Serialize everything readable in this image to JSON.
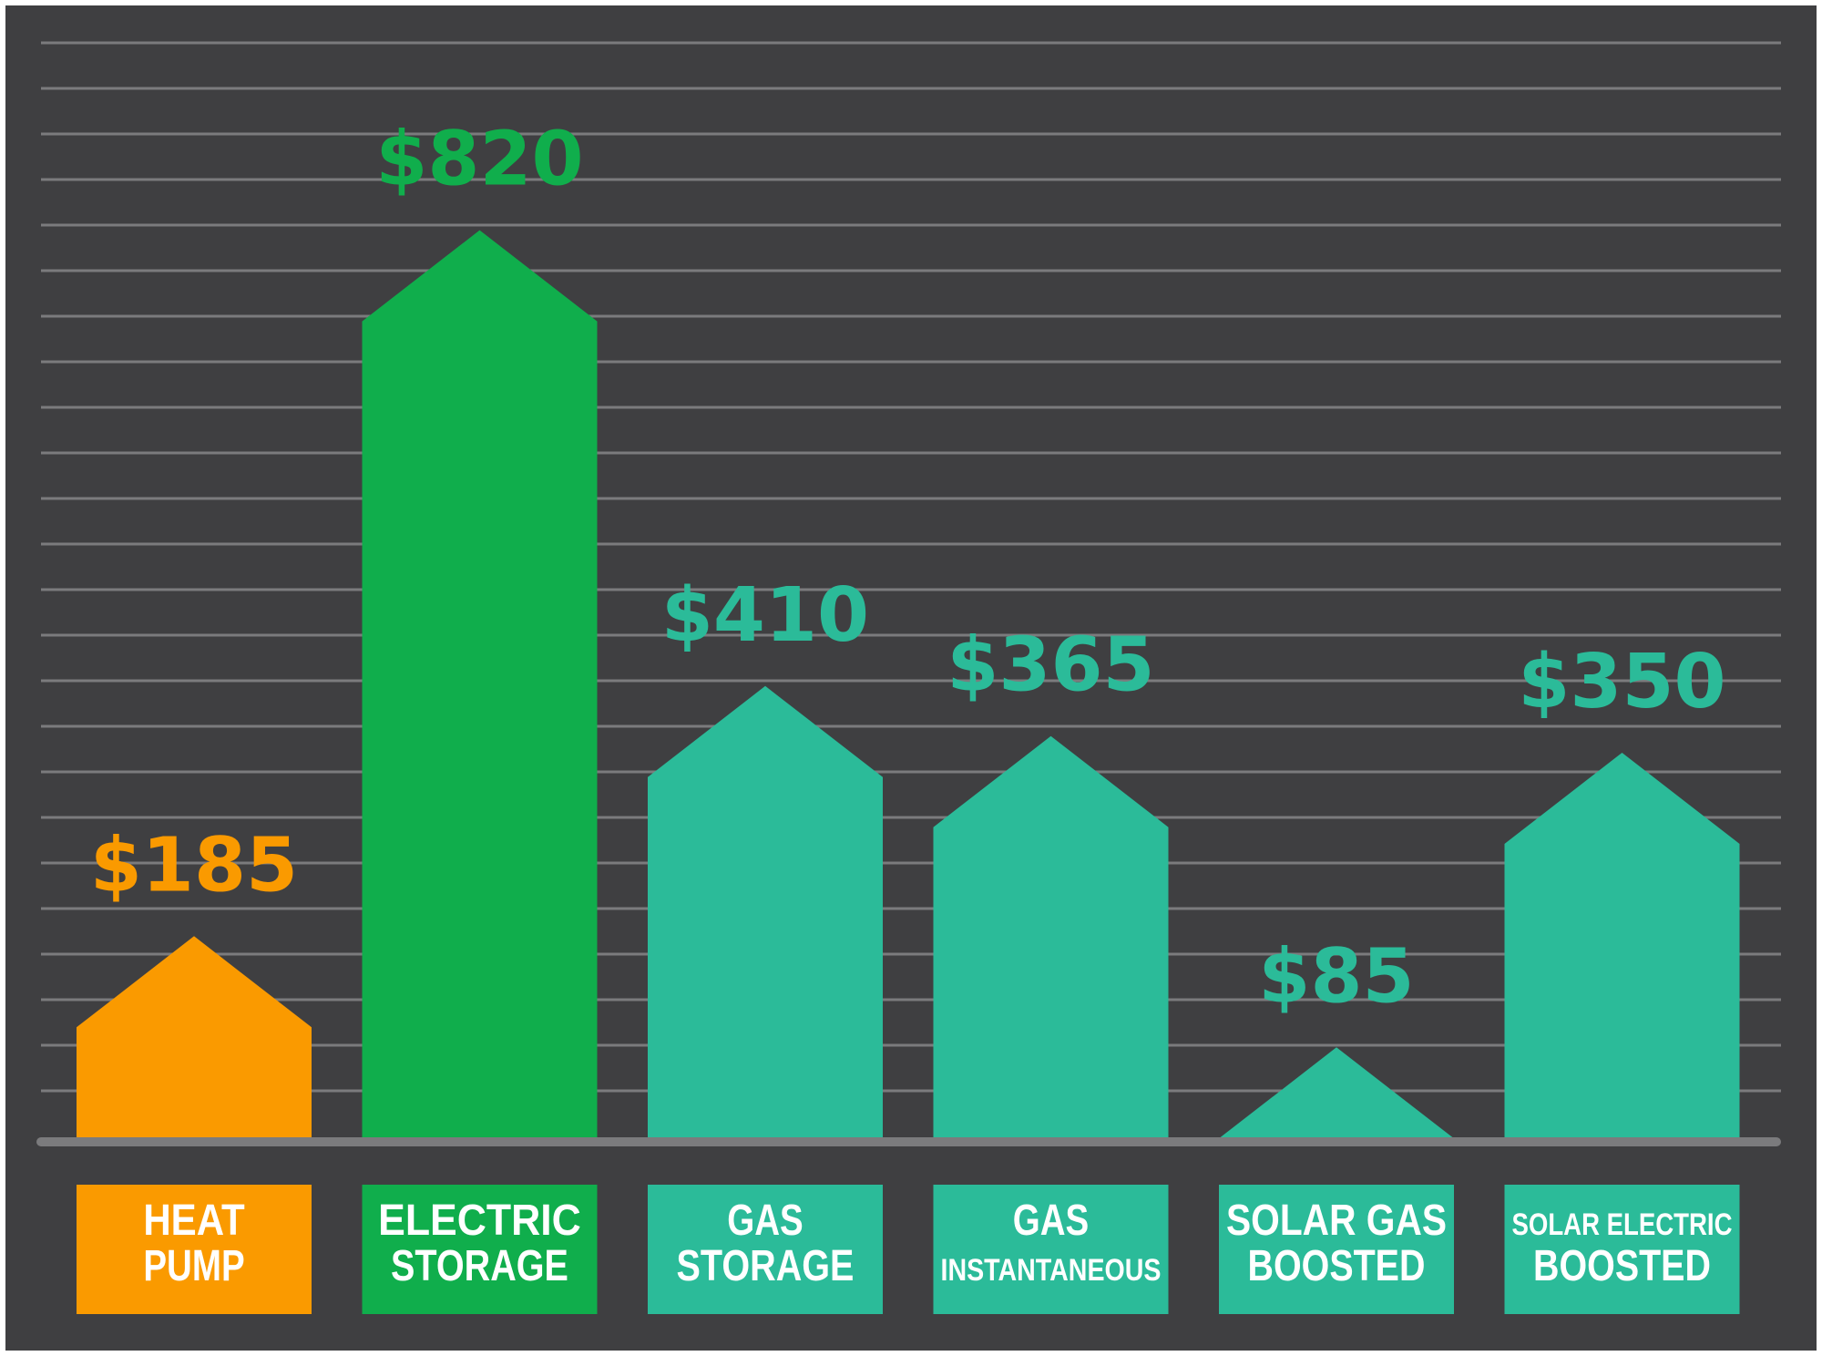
{
  "chart_data": {
    "type": "bar",
    "title": "",
    "xlabel": "",
    "ylabel": "",
    "grid": true,
    "categories": [
      [
        "HEAT",
        "PUMP"
      ],
      [
        "ELECTRIC",
        "STORAGE"
      ],
      [
        "GAS",
        "STORAGE"
      ],
      [
        "GAS",
        "INSTANTANEOUS"
      ],
      [
        "SOLAR GAS",
        "BOOSTED"
      ],
      [
        "SOLAR ELECTRIC",
        "BOOSTED"
      ]
    ],
    "values": [
      185,
      820,
      410,
      365,
      85,
      350
    ],
    "value_labels": [
      "$185",
      "$820",
      "$410",
      "$365",
      "$85",
      "$350"
    ],
    "colors": [
      "#fa9a00",
      "#10ae4c",
      "#2bbb99",
      "#2bbb99",
      "#2bbb99",
      "#2bbb99"
    ],
    "background": "#3f3f41",
    "gridline_color": "#7b7b7d",
    "baseline_color": "#7b7b7d"
  }
}
